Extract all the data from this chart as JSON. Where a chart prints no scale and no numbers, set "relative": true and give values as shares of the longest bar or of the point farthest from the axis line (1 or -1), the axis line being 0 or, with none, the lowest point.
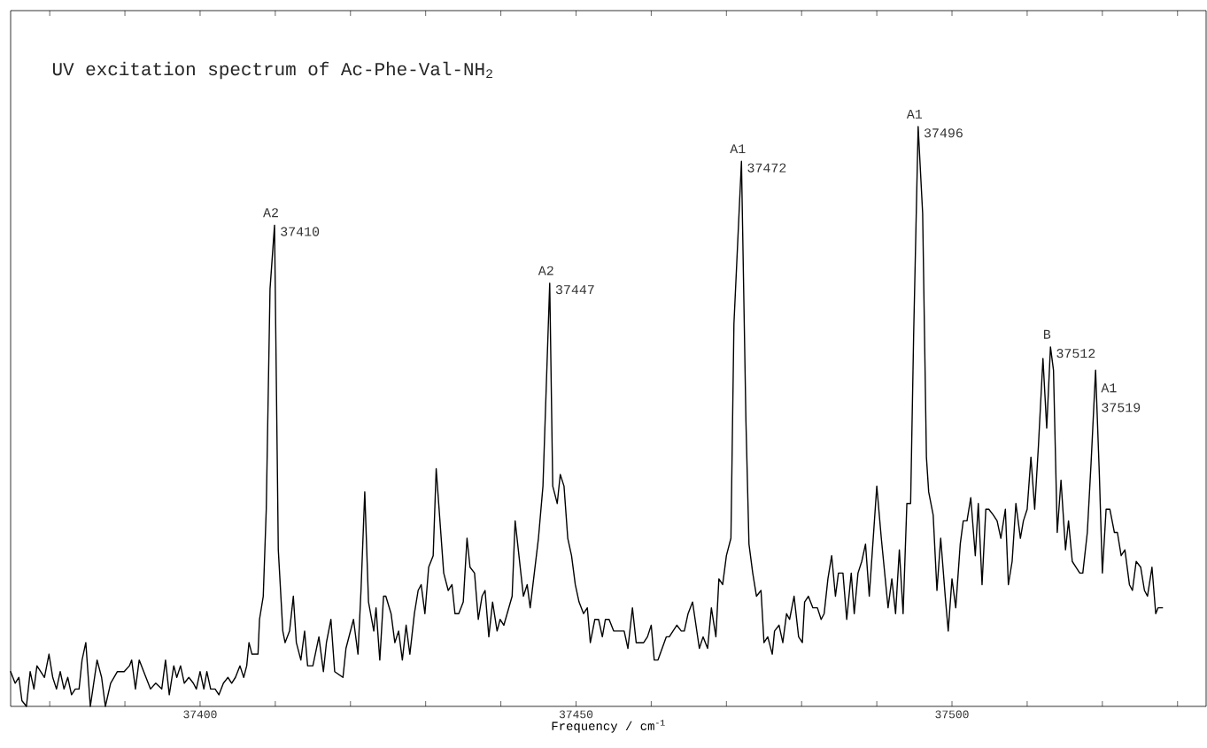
{
  "chart_data": {
    "type": "line",
    "title": "UV excitation spectrum of Ac-Phe-Val-NH$_{2}$",
    "xlabel": "Frequency / cm$^{-1}$",
    "relative": true,
    "color": "#000000",
    "xlim": [
      37374.8,
      37533.8
    ],
    "xticks": [
      {
        "value": 37380,
        "label": null
      },
      {
        "value": 37390,
        "label": null
      },
      37400,
      {
        "value": 37410,
        "label": null
      },
      {
        "value": 37420,
        "label": null
      },
      {
        "value": 37430,
        "label": null
      },
      {
        "value": 37440,
        "label": null
      },
      37450,
      {
        "value": 37460,
        "label": null
      },
      {
        "value": 37470,
        "label": null
      },
      {
        "value": 37480,
        "label": null
      },
      {
        "value": 37490,
        "label": null
      },
      37500,
      {
        "value": 37510,
        "label": null
      },
      {
        "value": 37520,
        "label": null
      },
      {
        "value": 37530,
        "label": null
      }
    ],
    "x": [
      37374.8,
      37375.4,
      37375.9,
      37376.3,
      37376.9,
      37377.4,
      37377.9,
      37378.3,
      37379.3,
      37379.9,
      37380.4,
      37380.9,
      37381.4,
      37381.9,
      37382.4,
      37382.9,
      37383.4,
      37383.9,
      37384.3,
      37384.8,
      37385.4,
      37386.3,
      37386.9,
      37387.4,
      37388.1,
      37389.0,
      37389.9,
      37390.6,
      37390.9,
      37391.4,
      37391.9,
      37393.4,
      37394.1,
      37394.9,
      37395.4,
      37395.9,
      37396.5,
      37396.9,
      37397.4,
      37397.9,
      37398.5,
      37399.1,
      37399.5,
      37400.0,
      37400.5,
      37400.9,
      37401.4,
      37402.0,
      37402.5,
      37403.1,
      37403.7,
      37404.2,
      37404.7,
      37405.3,
      37405.8,
      37406.2,
      37406.5,
      37406.9,
      37407.7,
      37407.9,
      37408.4,
      37408.8,
      37409.3,
      37409.9,
      37410.4,
      37411.0,
      37411.3,
      37411.9,
      37412.4,
      37412.8,
      37413.4,
      37413.9,
      37414.3,
      37415.0,
      37415.8,
      37416.4,
      37416.8,
      37417.4,
      37417.9,
      37419.0,
      37419.4,
      37420.4,
      37421.0,
      37421.4,
      37421.9,
      37422.4,
      37423.1,
      37423.4,
      37423.9,
      37424.4,
      37424.7,
      37425.4,
      37425.9,
      37426.4,
      37426.9,
      37427.4,
      37427.9,
      37428.5,
      37429.0,
      37429.4,
      37429.9,
      37430.4,
      37431.0,
      37431.4,
      37432.4,
      37433.0,
      37433.5,
      37433.9,
      37434.4,
      37435.0,
      37435.5,
      37435.9,
      37436.5,
      37437.0,
      37437.5,
      37437.9,
      37438.4,
      37438.9,
      37439.5,
      37439.9,
      37440.4,
      37441.5,
      37441.9,
      37443.0,
      37443.5,
      37443.9,
      37445.0,
      37445.6,
      37446.5,
      37446.9,
      37447.5,
      37447.9,
      37448.4,
      37448.9,
      37449.4,
      37449.9,
      37450.4,
      37451.0,
      37451.5,
      37451.9,
      37452.5,
      37453.0,
      37453.5,
      37453.9,
      37454.4,
      37455.0,
      37455.5,
      37456.4,
      37456.9,
      37457.5,
      37458.0,
      37458.5,
      37459.0,
      37459.5,
      37460.0,
      37460.4,
      37460.9,
      37462.0,
      37462.4,
      37463.4,
      37464.0,
      37464.4,
      37464.9,
      37465.5,
      37466.4,
      37466.9,
      37467.5,
      37468.0,
      37468.6,
      37469.0,
      37469.5,
      37470.0,
      37470.6,
      37471.0,
      37472.0,
      37472.6,
      37473.0,
      37473.5,
      37474.0,
      37474.6,
      37475.0,
      37475.5,
      37476.1,
      37476.4,
      37477.0,
      37477.5,
      37478.0,
      37478.4,
      37479.0,
      37479.6,
      37480.1,
      37480.4,
      37480.9,
      37481.5,
      37482.1,
      37482.6,
      37483.0,
      37483.5,
      37484.0,
      37484.5,
      37484.9,
      37485.5,
      37486.0,
      37486.6,
      37487.0,
      37487.5,
      37488.0,
      37488.5,
      37489.0,
      37490.0,
      37490.6,
      37491.5,
      37492.0,
      37492.5,
      37493.0,
      37493.5,
      37494.0,
      37494.5,
      37494.9,
      37495.5,
      37496.1,
      37496.6,
      37496.9,
      37497.5,
      37498.0,
      37498.5,
      37499.1,
      37499.5,
      37500.0,
      37500.5,
      37501.1,
      37501.5,
      37502.0,
      37502.5,
      37503.1,
      37503.5,
      37504.0,
      37504.5,
      37504.9,
      37505.5,
      37506.0,
      37506.5,
      37507.1,
      37507.5,
      37508.0,
      37508.5,
      37509.1,
      37509.5,
      37510.0,
      37510.5,
      37511.0,
      37511.5,
      37512.1,
      37512.6,
      37513.1,
      37513.5,
      37514.0,
      37514.5,
      37515.1,
      37515.5,
      37516.0,
      37516.5,
      37517.0,
      37517.4,
      37518.0,
      37518.5,
      37519.1,
      37519.6,
      37520.0,
      37520.5,
      37521.0,
      37521.6,
      37522.0,
      37522.5,
      37523.0,
      37523.6,
      37524.0,
      37524.5,
      37525.1,
      37525.6,
      37526.0,
      37526.6,
      37527.1,
      37527.4,
      37528.0
    ],
    "values": [
      0.06,
      0.04,
      0.05,
      0.01,
      0.0,
      0.06,
      0.03,
      0.07,
      0.05,
      0.09,
      0.05,
      0.03,
      0.06,
      0.03,
      0.05,
      0.02,
      0.03,
      0.03,
      0.08,
      0.11,
      0.0,
      0.08,
      0.05,
      0.0,
      0.04,
      0.06,
      0.06,
      0.07,
      0.08,
      0.03,
      0.08,
      0.03,
      0.04,
      0.03,
      0.08,
      0.02,
      0.07,
      0.05,
      0.07,
      0.04,
      0.05,
      0.04,
      0.03,
      0.06,
      0.03,
      0.06,
      0.03,
      0.03,
      0.02,
      0.04,
      0.05,
      0.04,
      0.05,
      0.07,
      0.05,
      0.07,
      0.11,
      0.09,
      0.09,
      0.15,
      0.19,
      0.34,
      0.72,
      0.83,
      0.27,
      0.13,
      0.11,
      0.13,
      0.19,
      0.11,
      0.08,
      0.13,
      0.07,
      0.07,
      0.12,
      0.06,
      0.11,
      0.15,
      0.06,
      0.05,
      0.1,
      0.15,
      0.09,
      0.2,
      0.37,
      0.18,
      0.13,
      0.17,
      0.08,
      0.19,
      0.19,
      0.16,
      0.11,
      0.13,
      0.08,
      0.14,
      0.09,
      0.16,
      0.2,
      0.21,
      0.16,
      0.24,
      0.26,
      0.41,
      0.23,
      0.2,
      0.21,
      0.16,
      0.16,
      0.18,
      0.29,
      0.24,
      0.23,
      0.15,
      0.19,
      0.2,
      0.12,
      0.18,
      0.13,
      0.15,
      0.14,
      0.19,
      0.32,
      0.19,
      0.21,
      0.17,
      0.29,
      0.38,
      0.73,
      0.38,
      0.35,
      0.4,
      0.38,
      0.29,
      0.26,
      0.21,
      0.18,
      0.16,
      0.17,
      0.11,
      0.15,
      0.15,
      0.12,
      0.15,
      0.15,
      0.13,
      0.13,
      0.13,
      0.1,
      0.17,
      0.11,
      0.11,
      0.11,
      0.12,
      0.14,
      0.08,
      0.08,
      0.12,
      0.12,
      0.14,
      0.13,
      0.13,
      0.16,
      0.18,
      0.1,
      0.12,
      0.1,
      0.17,
      0.12,
      0.22,
      0.21,
      0.26,
      0.29,
      0.66,
      0.94,
      0.49,
      0.28,
      0.23,
      0.19,
      0.2,
      0.11,
      0.12,
      0.09,
      0.13,
      0.14,
      0.11,
      0.16,
      0.15,
      0.19,
      0.12,
      0.11,
      0.18,
      0.19,
      0.17,
      0.17,
      0.15,
      0.16,
      0.22,
      0.26,
      0.19,
      0.23,
      0.23,
      0.15,
      0.23,
      0.16,
      0.23,
      0.25,
      0.28,
      0.19,
      0.38,
      0.29,
      0.17,
      0.22,
      0.16,
      0.27,
      0.16,
      0.35,
      0.35,
      0.64,
      1.0,
      0.85,
      0.43,
      0.37,
      0.33,
      0.2,
      0.29,
      0.19,
      0.13,
      0.22,
      0.17,
      0.28,
      0.32,
      0.32,
      0.36,
      0.26,
      0.35,
      0.21,
      0.34,
      0.34,
      0.33,
      0.32,
      0.29,
      0.34,
      0.21,
      0.25,
      0.35,
      0.29,
      0.32,
      0.34,
      0.43,
      0.34,
      0.45,
      0.6,
      0.48,
      0.62,
      0.58,
      0.3,
      0.39,
      0.27,
      0.32,
      0.25,
      0.24,
      0.23,
      0.23,
      0.3,
      0.42,
      0.58,
      0.4,
      0.23,
      0.34,
      0.34,
      0.3,
      0.3,
      0.26,
      0.27,
      0.21,
      0.2,
      0.25,
      0.24,
      0.2,
      0.19,
      0.24,
      0.16,
      0.17,
      0.17
    ],
    "annotations": [
      {
        "text": "A2",
        "x": 37409.9,
        "y": 0.83
      },
      {
        "text": "37410",
        "x": 37409.9,
        "y": 0.83
      },
      {
        "text": "A2",
        "x": 37446.5,
        "y": 0.73
      },
      {
        "text": "37447",
        "x": 37446.5,
        "y": 0.73
      },
      {
        "text": "A1",
        "x": 37472.0,
        "y": 0.94
      },
      {
        "text": "37472",
        "x": 37472.0,
        "y": 0.94
      },
      {
        "text": "A1",
        "x": 37495.5,
        "y": 1.0
      },
      {
        "text": "37496",
        "x": 37495.5,
        "y": 1.0
      },
      {
        "text": "B",
        "x": 37513.1,
        "y": 0.62
      },
      {
        "text": "37512",
        "x": 37513.1,
        "y": 0.62
      },
      {
        "text": "A1",
        "x": 37519.1,
        "y": 0.58
      },
      {
        "text": "37519",
        "x": 37519.1,
        "y": 0.58
      }
    ]
  }
}
